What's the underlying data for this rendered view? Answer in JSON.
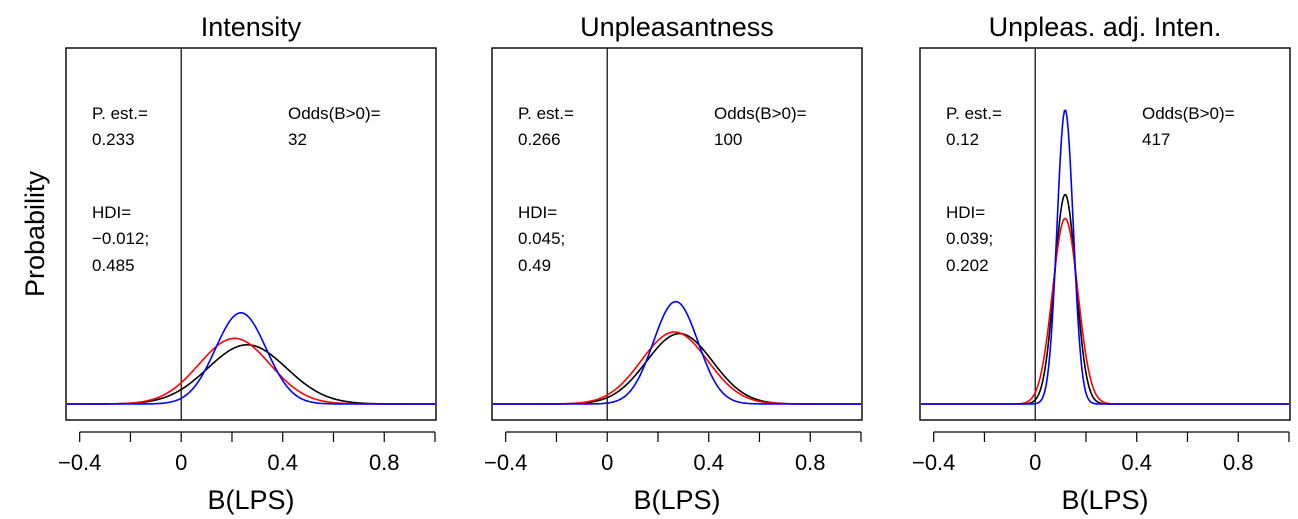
{
  "chart_data": [
    {
      "type": "line",
      "title": "Intensity",
      "xlabel": "B(LPS)",
      "ylabel": "Probability",
      "xlim": [
        -0.45,
        1.0
      ],
      "xticks": [
        -0.4,
        -0.2,
        0,
        0.2,
        0.4,
        0.6,
        0.8,
        1.0
      ],
      "xtick_labels": [
        "-0.4",
        "",
        "0",
        "",
        "0.4",
        "",
        "0.8",
        ""
      ],
      "ylim": [
        0,
        1
      ],
      "zero_line": true,
      "annotations": {
        "pest_label": "P. est.=",
        "pest_value": "0.233",
        "hdi_label": "HDI=",
        "hdi_low": "-0.012;",
        "hdi_high": "0.485",
        "odds_label": "Odds(B>0)=",
        "odds_value": "32"
      },
      "series": [
        {
          "color": "#000000",
          "mean": 0.26,
          "sd": 0.155,
          "peak": 0.185
        },
        {
          "color": "#ff0000",
          "mean": 0.21,
          "sd": 0.14,
          "peak": 0.205
        },
        {
          "color": "#0000ff",
          "mean": 0.235,
          "sd": 0.1,
          "peak": 0.285
        }
      ]
    },
    {
      "type": "line",
      "title": "Unpleasantness",
      "xlabel": "B(LPS)",
      "ylabel": "",
      "xlim": [
        -0.45,
        1.0
      ],
      "xticks": [
        -0.4,
        -0.2,
        0,
        0.2,
        0.4,
        0.6,
        0.8,
        1.0
      ],
      "xtick_labels": [
        "-0.4",
        "",
        "0",
        "",
        "0.4",
        "",
        "0.8",
        ""
      ],
      "ylim": [
        0,
        1
      ],
      "zero_line": true,
      "annotations": {
        "pest_label": "P. est.=",
        "pest_value": "0.266",
        "hdi_label": "HDI=",
        "hdi_low": "0.045;",
        "hdi_high": "0.49",
        "odds_label": "Odds(B>0)=",
        "odds_value": "100"
      },
      "series": [
        {
          "color": "#000000",
          "mean": 0.285,
          "sd": 0.13,
          "peak": 0.22
        },
        {
          "color": "#ff0000",
          "mean": 0.265,
          "sd": 0.13,
          "peak": 0.225
        },
        {
          "color": "#0000ff",
          "mean": 0.27,
          "sd": 0.088,
          "peak": 0.32
        }
      ]
    },
    {
      "type": "line",
      "title": "Unpleas. adj. Inten.",
      "xlabel": "B(LPS)",
      "ylabel": "",
      "xlim": [
        -0.45,
        1.0
      ],
      "xticks": [
        -0.4,
        -0.2,
        0,
        0.2,
        0.4,
        0.6,
        0.8,
        1.0
      ],
      "xtick_labels": [
        "-0.4",
        "",
        "0",
        "",
        "0.4",
        "",
        "0.8",
        ""
      ],
      "ylim": [
        0,
        1
      ],
      "zero_line": true,
      "annotations": {
        "pest_label": "P. est.=",
        "pest_value": "0.12",
        "hdi_label": "HDI=",
        "hdi_low": "0.039;",
        "hdi_high": "0.202",
        "odds_label": "Odds(B>0)=",
        "odds_value": "417"
      },
      "series": [
        {
          "color": "#000000",
          "mean": 0.118,
          "sd": 0.042,
          "peak": 0.655
        },
        {
          "color": "#ff0000",
          "mean": 0.118,
          "sd": 0.05,
          "peak": 0.58
        },
        {
          "color": "#0000ff",
          "mean": 0.118,
          "sd": 0.032,
          "peak": 0.92
        }
      ]
    }
  ]
}
